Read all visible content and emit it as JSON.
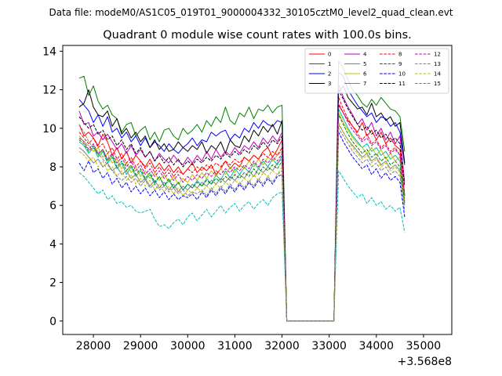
{
  "suptitle": "Data file: modeM0/AS1C05_019T01_9000004332_30105cztM0_level2_quad_clean.evt",
  "chart_data": {
    "type": "line",
    "title": "Quadrant 0 module wise count rates with 100.0s bins.",
    "xlabel": "",
    "ylabel": "",
    "offset_label": "+3.568e8",
    "xlim": [
      27350,
      35600
    ],
    "ylim": [
      -0.7,
      14.3
    ],
    "xticks": [
      28000,
      29000,
      30000,
      31000,
      32000,
      33000,
      34000,
      35000
    ],
    "xtick_labels": [
      "28000",
      "29000",
      "30000",
      "31000",
      "32000",
      "33000",
      "34000",
      "35000"
    ],
    "yticks": [
      0,
      2,
      4,
      6,
      8,
      10,
      12,
      14
    ],
    "ytick_labels": [
      "0",
      "2",
      "4",
      "6",
      "8",
      "10",
      "12",
      "14"
    ],
    "grid": false,
    "legend_position": "top-right",
    "x_start": 27700,
    "x_step": 100,
    "series": [
      {
        "name": "0",
        "color": "#ff0000",
        "dash": "solid",
        "values": [
          10.2,
          9.6,
          9.8,
          9.5,
          9.1,
          9.7,
          9.3,
          8.6,
          9.0,
          8.4,
          8.8,
          8.2,
          8.6,
          8.3,
          8.0,
          8.4,
          7.9,
          8.2,
          7.8,
          8.1,
          7.7,
          8.0,
          7.6,
          7.9,
          8.2,
          7.7,
          8.0,
          7.8,
          8.1,
          7.6,
          7.9,
          8.3,
          7.9,
          8.2,
          8.0,
          8.5,
          8.3,
          8.6,
          8.4,
          8.8,
          9.0,
          8.5,
          8.9,
          9.4,
          0.0,
          0.0,
          0.0,
          0.0,
          0.0,
          0.0,
          0.0,
          0.0,
          0.0,
          0.0,
          0.0,
          11.2,
          10.8,
          10.4,
          10.1,
          9.8,
          10.3,
          9.6,
          9.9,
          9.4,
          9.8,
          9.2,
          9.5,
          9.1,
          8.9,
          6.5
        ]
      },
      {
        "name": "1",
        "color": "#008000",
        "dash": "solid",
        "values": [
          12.6,
          12.7,
          11.7,
          12.2,
          11.4,
          11.0,
          11.2,
          10.7,
          10.5,
          9.8,
          10.2,
          10.3,
          9.6,
          9.9,
          10.1,
          9.4,
          9.8,
          9.3,
          9.9,
          10.0,
          9.6,
          9.4,
          10.0,
          9.7,
          9.9,
          10.2,
          9.8,
          10.4,
          10.1,
          10.6,
          10.3,
          11.1,
          10.4,
          10.2,
          10.8,
          10.6,
          11.1,
          10.5,
          11.0,
          10.9,
          11.2,
          10.8,
          11.1,
          11.2,
          0.0,
          0.0,
          0.0,
          0.0,
          0.0,
          0.0,
          0.0,
          0.0,
          0.0,
          0.0,
          0.0,
          13.5,
          13.1,
          12.5,
          12.0,
          11.7,
          11.3,
          11.1,
          11.5,
          11.2,
          11.6,
          11.3,
          11.0,
          10.9,
          10.6,
          8.8
        ]
      },
      {
        "name": "2",
        "color": "#0000ff",
        "dash": "solid",
        "values": [
          11.5,
          11.2,
          10.9,
          10.3,
          10.7,
          10.1,
          10.6,
          9.8,
          10.0,
          9.5,
          9.8,
          9.3,
          9.6,
          9.1,
          9.5,
          9.0,
          9.3,
          9.1,
          8.8,
          9.2,
          8.9,
          8.7,
          9.0,
          9.2,
          9.5,
          9.1,
          9.4,
          9.3,
          9.8,
          9.6,
          9.8,
          9.9,
          9.4,
          9.7,
          9.5,
          10.0,
          9.8,
          10.3,
          10.0,
          10.4,
          10.2,
          10.1,
          10.4,
          10.3,
          0.0,
          0.0,
          0.0,
          0.0,
          0.0,
          0.0,
          0.0,
          0.0,
          0.0,
          0.0,
          0.0,
          12.9,
          12.7,
          12.0,
          11.6,
          11.2,
          10.9,
          10.6,
          10.8,
          10.3,
          10.6,
          10.5,
          10.1,
          10.3,
          9.8,
          8.1
        ]
      },
      {
        "name": "3",
        "color": "#000000",
        "dash": "solid",
        "values": [
          11.1,
          11.3,
          12.0,
          11.1,
          10.7,
          10.6,
          10.9,
          10.1,
          10.5,
          9.7,
          10.0,
          9.5,
          9.8,
          9.3,
          9.6,
          9.0,
          9.4,
          8.9,
          9.2,
          8.8,
          8.9,
          9.3,
          9.0,
          8.8,
          9.1,
          8.9,
          9.3,
          8.7,
          9.1,
          8.9,
          9.3,
          8.7,
          9.4,
          9.1,
          9.0,
          9.6,
          9.3,
          9.9,
          9.6,
          10.1,
          9.8,
          10.2,
          9.7,
          10.4,
          0.0,
          0.0,
          0.0,
          0.0,
          0.0,
          0.0,
          0.0,
          0.0,
          0.0,
          0.0,
          0.0,
          11.9,
          12.2,
          11.6,
          11.3,
          11.0,
          11.1,
          10.7,
          11.3,
          10.6,
          10.8,
          10.4,
          10.6,
          10.1,
          10.3,
          8.2
        ]
      },
      {
        "name": "4",
        "color": "#bf00bf",
        "dash": "solid",
        "values": [
          10.9,
          10.2,
          10.3,
          9.6,
          9.8,
          9.4,
          9.7,
          9.3,
          8.9,
          9.2,
          8.7,
          9.1,
          8.6,
          8.9,
          8.5,
          8.8,
          8.3,
          8.7,
          8.4,
          8.2,
          8.6,
          8.3,
          8.1,
          8.5,
          8.2,
          8.6,
          8.3,
          8.8,
          8.4,
          8.9,
          8.5,
          8.8,
          8.6,
          9.0,
          8.7,
          9.1,
          8.9,
          9.3,
          9.0,
          9.5,
          9.2,
          9.6,
          9.3,
          9.8,
          0.0,
          0.0,
          0.0,
          0.0,
          0.0,
          0.0,
          0.0,
          0.0,
          0.0,
          0.0,
          0.0,
          12.3,
          11.6,
          11.1,
          10.7,
          10.2,
          10.5,
          9.9,
          10.3,
          9.6,
          10.0,
          9.4,
          9.8,
          9.2,
          9.6,
          7.2
        ]
      },
      {
        "name": "5",
        "color": "#00bfa0",
        "dash": "solid",
        "values": [
          9.3,
          9.1,
          8.7,
          9.0,
          8.5,
          8.8,
          8.2,
          8.5,
          7.9,
          8.2,
          7.6,
          8.0,
          7.5,
          7.8,
          7.3,
          7.6,
          7.1,
          7.5,
          7.0,
          7.3,
          6.9,
          7.2,
          6.8,
          7.1,
          6.9,
          7.3,
          7.0,
          7.4,
          7.1,
          7.6,
          7.3,
          7.8,
          7.4,
          7.9,
          7.6,
          8.0,
          7.7,
          8.2,
          7.9,
          8.3,
          8.0,
          8.4,
          8.1,
          8.6,
          0.0,
          0.0,
          0.0,
          0.0,
          0.0,
          0.0,
          0.0,
          0.0,
          0.0,
          0.0,
          0.0,
          11.0,
          10.5,
          10.0,
          9.6,
          9.3,
          9.0,
          9.2,
          8.8,
          9.0,
          8.6,
          8.8,
          8.4,
          8.6,
          8.3,
          6.2
        ]
      },
      {
        "name": "6",
        "color": "#bfbf00",
        "dash": "solid",
        "values": [
          9.6,
          9.3,
          9.1,
          8.8,
          9.0,
          8.5,
          8.7,
          8.2,
          8.4,
          7.9,
          8.2,
          7.7,
          8.0,
          7.5,
          7.8,
          7.4,
          7.7,
          7.3,
          7.6,
          7.2,
          7.5,
          7.1,
          7.4,
          7.2,
          7.6,
          7.3,
          7.7,
          7.4,
          7.8,
          7.5,
          7.9,
          7.6,
          8.0,
          7.7,
          8.1,
          7.9,
          8.3,
          8.0,
          8.4,
          8.1,
          8.5,
          8.3,
          8.6,
          8.8,
          0.0,
          0.0,
          0.0,
          0.0,
          0.0,
          0.0,
          0.0,
          0.0,
          0.0,
          0.0,
          0.0,
          10.8,
          10.3,
          9.9,
          9.5,
          9.2,
          9.0,
          8.7,
          9.0,
          8.6,
          8.9,
          8.4,
          8.7,
          8.3,
          8.5,
          6.4
        ]
      },
      {
        "name": "7",
        "color": "#808080",
        "dash": "solid",
        "values": [
          9.0,
          8.8,
          8.5,
          8.2,
          8.4,
          8.0,
          8.2,
          7.8,
          8.0,
          7.6,
          7.8,
          7.4,
          7.6,
          7.2,
          7.4,
          7.0,
          7.3,
          6.9,
          7.2,
          6.8,
          7.1,
          6.7,
          7.0,
          6.8,
          7.1,
          6.9,
          7.2,
          7.0,
          7.3,
          7.1,
          7.4,
          7.2,
          7.5,
          7.3,
          7.6,
          7.4,
          7.8,
          7.5,
          7.9,
          7.7,
          8.0,
          7.8,
          8.2,
          8.4,
          0.0,
          0.0,
          0.0,
          0.0,
          0.0,
          0.0,
          0.0,
          0.0,
          0.0,
          0.0,
          0.0,
          10.2,
          9.8,
          9.4,
          9.1,
          8.8,
          8.5,
          8.7,
          8.3,
          8.5,
          8.1,
          8.3,
          7.9,
          8.1,
          7.8,
          6.0
        ]
      },
      {
        "name": "8",
        "color": "#ff0000",
        "dash": "dashed",
        "values": [
          9.8,
          9.5,
          9.2,
          9.5,
          9.0,
          9.2,
          8.7,
          9.0,
          8.4,
          8.7,
          8.2,
          8.5,
          8.0,
          8.3,
          7.9,
          8.2,
          7.7,
          8.0,
          7.6,
          7.9,
          7.5,
          7.8,
          7.6,
          7.9,
          7.7,
          8.0,
          7.8,
          8.1,
          7.9,
          8.2,
          8.0,
          8.3,
          8.1,
          8.4,
          8.2,
          8.5,
          8.3,
          8.6,
          8.4,
          8.7,
          8.5,
          8.8,
          8.6,
          9.0,
          0.0,
          0.0,
          0.0,
          0.0,
          0.0,
          0.0,
          0.0,
          0.0,
          0.0,
          0.0,
          0.0,
          11.6,
          11.0,
          10.5,
          10.1,
          9.7,
          9.4,
          9.7,
          9.2,
          9.4,
          9.0,
          9.2,
          8.8,
          9.0,
          8.6,
          6.6
        ]
      },
      {
        "name": "9",
        "color": "#008000",
        "dash": "dashed",
        "values": [
          9.4,
          9.2,
          8.8,
          9.1,
          8.6,
          8.9,
          8.3,
          8.6,
          8.0,
          8.3,
          7.8,
          8.1,
          7.6,
          7.9,
          7.4,
          7.7,
          7.2,
          7.5,
          7.0,
          7.4,
          6.9,
          7.2,
          6.8,
          7.1,
          6.9,
          7.2,
          7.0,
          7.3,
          7.1,
          7.4,
          7.2,
          7.5,
          7.3,
          7.6,
          7.4,
          7.7,
          7.5,
          7.9,
          7.6,
          8.0,
          7.8,
          8.1,
          7.9,
          8.3,
          0.0,
          0.0,
          0.0,
          0.0,
          0.0,
          0.0,
          0.0,
          0.0,
          0.0,
          0.0,
          0.0,
          10.7,
          10.2,
          9.7,
          9.3,
          9.0,
          8.7,
          8.9,
          8.5,
          8.7,
          8.3,
          8.5,
          8.1,
          8.3,
          8.0,
          6.1
        ]
      },
      {
        "name": "10",
        "color": "#0000ff",
        "dash": "dashed",
        "values": [
          8.2,
          7.8,
          8.3,
          7.7,
          7.9,
          7.4,
          7.7,
          7.1,
          7.4,
          6.9,
          7.2,
          6.7,
          7.0,
          6.6,
          6.9,
          6.5,
          6.8,
          6.4,
          6.7,
          6.3,
          6.6,
          6.3,
          6.5,
          6.4,
          6.6,
          6.3,
          6.7,
          6.4,
          6.8,
          6.5,
          6.9,
          6.6,
          7.0,
          6.7,
          7.1,
          6.8,
          7.2,
          6.9,
          7.3,
          7.0,
          7.4,
          7.1,
          7.5,
          7.6,
          0.0,
          0.0,
          0.0,
          0.0,
          0.0,
          0.0,
          0.0,
          0.0,
          0.0,
          0.0,
          0.0,
          9.8,
          9.3,
          8.9,
          8.5,
          8.2,
          7.9,
          8.1,
          7.6,
          7.9,
          7.4,
          7.7,
          7.3,
          7.5,
          7.2,
          5.4
        ]
      },
      {
        "name": "11",
        "color": "#000000",
        "dash": "dashed",
        "values": [
          10.6,
          10.3,
          10.0,
          10.2,
          9.7,
          9.9,
          9.4,
          9.6,
          9.1,
          9.4,
          8.9,
          9.2,
          8.7,
          9.0,
          8.5,
          8.8,
          8.3,
          8.6,
          8.2,
          8.5,
          8.1,
          8.4,
          8.0,
          8.3,
          8.1,
          8.4,
          8.2,
          8.5,
          8.3,
          8.6,
          8.4,
          8.7,
          8.5,
          8.8,
          8.6,
          8.9,
          8.7,
          9.1,
          8.9,
          9.3,
          9.0,
          9.4,
          9.2,
          9.6,
          0.0,
          0.0,
          0.0,
          0.0,
          0.0,
          0.0,
          0.0,
          0.0,
          0.0,
          0.0,
          0.0,
          12.0,
          11.5,
          11.0,
          10.6,
          10.2,
          9.9,
          10.1,
          9.7,
          9.9,
          9.5,
          9.7,
          9.3,
          9.5,
          9.2,
          7.0
        ]
      },
      {
        "name": "12",
        "color": "#bf00bf",
        "dash": "dashed",
        "values": [
          9.5,
          9.3,
          8.9,
          9.2,
          8.7,
          8.9,
          8.4,
          8.7,
          8.2,
          8.5,
          8.0,
          8.3,
          7.8,
          8.1,
          7.6,
          7.9,
          7.5,
          7.8,
          7.4,
          7.7,
          7.3,
          7.6,
          7.2,
          7.5,
          7.3,
          7.6,
          7.4,
          7.7,
          7.5,
          7.8,
          7.6,
          7.9,
          7.7,
          8.0,
          7.8,
          8.1,
          7.9,
          8.3,
          8.0,
          8.4,
          8.2,
          8.5,
          8.3,
          8.7,
          0.0,
          0.0,
          0.0,
          0.0,
          0.0,
          0.0,
          0.0,
          0.0,
          0.0,
          0.0,
          0.0,
          11.3,
          10.8,
          10.3,
          9.9,
          9.6,
          9.3,
          9.5,
          9.1,
          9.3,
          8.9,
          9.1,
          8.7,
          8.9,
          8.6,
          6.5
        ]
      },
      {
        "name": "13",
        "color": "#00bfbf",
        "dash": "dashed",
        "values": [
          7.7,
          7.5,
          7.2,
          6.9,
          6.6,
          6.8,
          6.3,
          6.5,
          6.1,
          6.2,
          5.9,
          6.0,
          5.7,
          5.6,
          5.7,
          5.8,
          5.3,
          4.9,
          5.0,
          4.8,
          5.1,
          5.3,
          5.0,
          5.4,
          5.6,
          5.2,
          5.5,
          5.8,
          5.4,
          5.7,
          6.0,
          5.6,
          5.9,
          6.1,
          5.7,
          6.0,
          6.2,
          5.8,
          6.1,
          6.3,
          6.0,
          6.4,
          6.6,
          6.7,
          0.0,
          0.0,
          0.0,
          0.0,
          0.0,
          0.0,
          0.0,
          0.0,
          0.0,
          0.0,
          0.0,
          7.8,
          7.4,
          7.0,
          6.7,
          6.4,
          6.6,
          6.1,
          6.4,
          6.0,
          6.2,
          5.8,
          6.0,
          5.7,
          5.9,
          4.6
        ]
      },
      {
        "name": "14",
        "color": "#bfbf00",
        "dash": "dashed",
        "values": [
          8.8,
          8.6,
          8.3,
          8.5,
          8.0,
          8.3,
          7.8,
          8.0,
          7.5,
          7.8,
          7.3,
          7.6,
          7.1,
          7.4,
          7.0,
          7.3,
          6.8,
          7.1,
          6.7,
          7.0,
          6.6,
          6.9,
          6.5,
          6.8,
          6.6,
          6.9,
          6.7,
          7.0,
          6.8,
          7.1,
          6.9,
          7.2,
          7.0,
          7.3,
          7.1,
          7.4,
          7.2,
          7.6,
          7.3,
          7.7,
          7.5,
          7.8,
          7.6,
          8.0,
          0.0,
          0.0,
          0.0,
          0.0,
          0.0,
          0.0,
          0.0,
          0.0,
          0.0,
          0.0,
          0.0,
          10.3,
          9.8,
          9.4,
          9.0,
          8.7,
          8.4,
          8.6,
          8.2,
          8.4,
          8.0,
          8.2,
          7.8,
          8.0,
          7.7,
          5.9
        ]
      },
      {
        "name": "15",
        "color": "#808080",
        "dash": "dashed",
        "values": [
          10.2,
          9.8,
          9.3,
          9.0,
          8.7,
          8.4,
          8.1,
          7.8,
          7.5,
          7.3,
          7.5,
          7.2,
          7.4,
          7.0,
          7.3,
          6.9,
          7.1,
          6.8,
          7.0,
          6.7,
          6.9,
          6.6,
          6.8,
          6.5,
          6.7,
          6.6,
          6.8,
          6.5,
          6.9,
          6.6,
          7.0,
          6.7,
          7.1,
          6.8,
          7.2,
          6.9,
          7.3,
          7.0,
          7.4,
          7.1,
          7.5,
          7.2,
          7.6,
          7.8,
          0.0,
          0.0,
          0.0,
          0.0,
          0.0,
          0.0,
          0.0,
          0.0,
          0.0,
          0.0,
          0.0,
          10.0,
          9.6,
          9.2,
          8.8,
          8.5,
          8.2,
          8.4,
          8.0,
          8.2,
          7.8,
          8.0,
          7.6,
          7.8,
          7.5,
          5.7
        ]
      }
    ]
  }
}
